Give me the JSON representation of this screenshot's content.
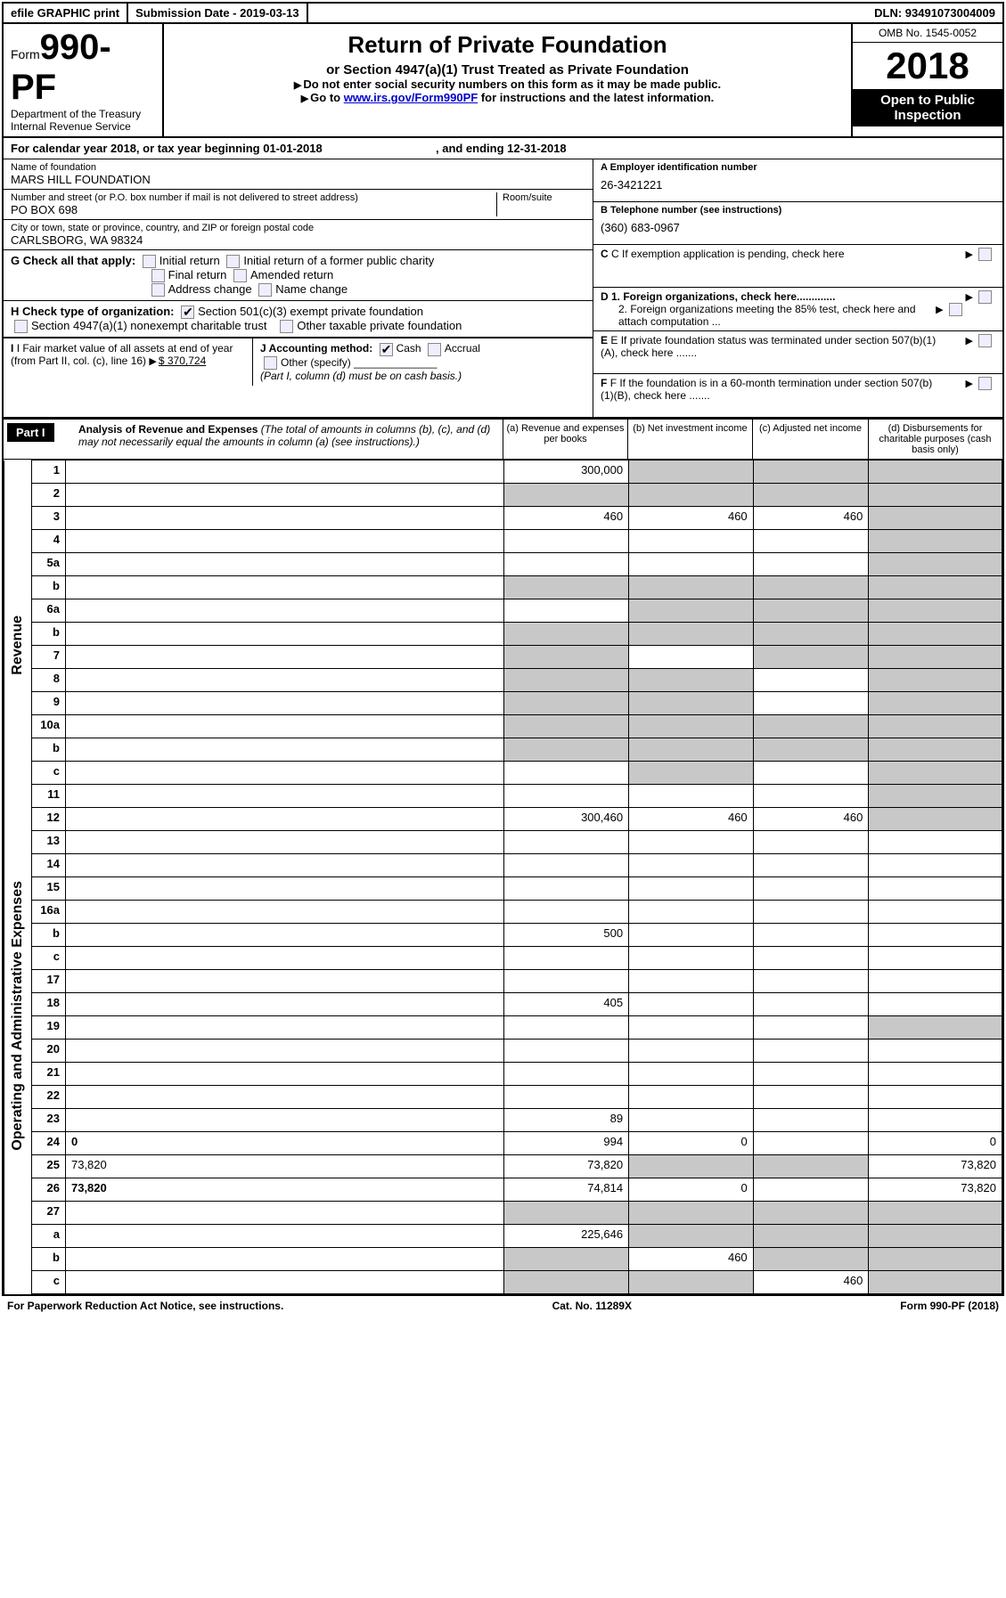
{
  "top": {
    "efile": "efile GRAPHIC print",
    "submission": "Submission Date - 2019-03-13",
    "dln": "DLN: 93491073004009"
  },
  "header": {
    "form_prefix": "Form",
    "form_num": "990-PF",
    "dept": "Department of the Treasury",
    "irs": "Internal Revenue Service",
    "title": "Return of Private Foundation",
    "subtitle": "or Section 4947(a)(1) Trust Treated as Private Foundation",
    "warn": "Do not enter social security numbers on this form as it may be made public.",
    "goto_pre": "Go to ",
    "goto_link": "www.irs.gov/Form990PF",
    "goto_post": " for instructions and the latest information.",
    "omb": "OMB No. 1545-0052",
    "year": "2018",
    "inspect": "Open to Public Inspection"
  },
  "cal": {
    "text_a": "For calendar year 2018, or tax year beginning 01-01-2018",
    "text_b": ", and ending 12-31-2018"
  },
  "entity": {
    "name_lbl": "Name of foundation",
    "name": "MARS HILL FOUNDATION",
    "addr_lbl": "Number and street (or P.O. box number if mail is not delivered to street address)",
    "room_lbl": "Room/suite",
    "addr": "PO BOX 698",
    "city_lbl": "City or town, state or province, country, and ZIP or foreign postal code",
    "city": "CARLSBORG, WA  98324",
    "ein_lbl": "A Employer identification number",
    "ein": "26-3421221",
    "tel_lbl": "B Telephone number (see instructions)",
    "tel": "(360) 683-0967",
    "c_lbl": "C If exemption application is pending, check here",
    "d1": "D 1. Foreign organizations, check here.............",
    "d2": "2. Foreign organizations meeting the 85% test, check here and attach computation ...",
    "e_lbl": "E  If private foundation status was terminated under section 507(b)(1)(A), check here .......",
    "f_lbl": "F  If the foundation is in a 60-month termination under section 507(b)(1)(B), check here ......."
  },
  "g": {
    "lbl": "G Check all that apply:",
    "opts": [
      "Initial return",
      "Initial return of a former public charity",
      "Final return",
      "Amended return",
      "Address change",
      "Name change"
    ]
  },
  "h": {
    "lbl": "H Check type of organization:",
    "o1": "Section 501(c)(3) exempt private foundation",
    "o2": "Section 4947(a)(1) nonexempt charitable trust",
    "o3": "Other taxable private foundation"
  },
  "i": {
    "lbl": "I Fair market value of all assets at end of year (from Part II, col. (c), line 16)",
    "val": "$  370,724"
  },
  "j": {
    "lbl": "J Accounting method:",
    "cash": "Cash",
    "accr": "Accrual",
    "other": "Other (specify)",
    "note": "(Part I, column (d) must be on cash basis.)"
  },
  "part1": {
    "hdr": "Part I",
    "title": "Analysis of Revenue and Expenses",
    "note": "(The total of amounts in columns (b), (c), and (d) may not necessarily equal the amounts in column (a) (see instructions).)",
    "col_a": "(a)   Revenue and expenses per books",
    "col_b": "(b)   Net investment income",
    "col_c": "(c)   Adjusted net income",
    "col_d": "(d)   Disbursements for charitable purposes (cash basis only)"
  },
  "side": {
    "rev": "Revenue",
    "exp": "Operating and Administrative Expenses"
  },
  "rows": [
    {
      "n": "1",
      "d": "",
      "a": "300,000",
      "b": "",
      "c": "",
      "sb": true,
      "sc": true,
      "sd": true
    },
    {
      "n": "2",
      "d": "",
      "a": "",
      "b": "",
      "c": "",
      "sa": true,
      "sb": true,
      "sc": true,
      "sd": true
    },
    {
      "n": "3",
      "d": "",
      "a": "460",
      "b": "460",
      "c": "460",
      "sd": true
    },
    {
      "n": "4",
      "d": "",
      "a": "",
      "b": "",
      "c": "",
      "sd": true
    },
    {
      "n": "5a",
      "d": "",
      "a": "",
      "b": "",
      "c": "",
      "sd": true
    },
    {
      "n": "b",
      "d": "",
      "a": "",
      "b": "",
      "c": "",
      "sa": true,
      "sb": true,
      "sc": true,
      "sd": true
    },
    {
      "n": "6a",
      "d": "",
      "a": "",
      "b": "",
      "c": "",
      "sb": true,
      "sc": true,
      "sd": true
    },
    {
      "n": "b",
      "d": "",
      "a": "",
      "b": "",
      "c": "",
      "sa": true,
      "sb": true,
      "sc": true,
      "sd": true
    },
    {
      "n": "7",
      "d": "",
      "a": "",
      "b": "",
      "c": "",
      "sa": true,
      "sc": true,
      "sd": true
    },
    {
      "n": "8",
      "d": "",
      "a": "",
      "b": "",
      "c": "",
      "sa": true,
      "sb": true,
      "sd": true
    },
    {
      "n": "9",
      "d": "",
      "a": "",
      "b": "",
      "c": "",
      "sa": true,
      "sb": true,
      "sd": true
    },
    {
      "n": "10a",
      "d": "",
      "a": "",
      "b": "",
      "c": "",
      "sa": true,
      "sb": true,
      "sc": true,
      "sd": true
    },
    {
      "n": "b",
      "d": "",
      "a": "",
      "b": "",
      "c": "",
      "sa": true,
      "sb": true,
      "sc": true,
      "sd": true
    },
    {
      "n": "c",
      "d": "",
      "a": "",
      "b": "",
      "c": "",
      "sb": true,
      "sd": true
    },
    {
      "n": "11",
      "d": "",
      "a": "",
      "b": "",
      "c": "",
      "sd": true
    },
    {
      "n": "12",
      "d": "",
      "a": "300,460",
      "b": "460",
      "c": "460",
      "bold": true,
      "sd": true
    }
  ],
  "rows2": [
    {
      "n": "13",
      "d": "",
      "a": "",
      "b": "",
      "c": ""
    },
    {
      "n": "14",
      "d": "",
      "a": "",
      "b": "",
      "c": ""
    },
    {
      "n": "15",
      "d": "",
      "a": "",
      "b": "",
      "c": ""
    },
    {
      "n": "16a",
      "d": "",
      "a": "",
      "b": "",
      "c": ""
    },
    {
      "n": "b",
      "d": "",
      "a": "500",
      "b": "",
      "c": ""
    },
    {
      "n": "c",
      "d": "",
      "a": "",
      "b": "",
      "c": ""
    },
    {
      "n": "17",
      "d": "",
      "a": "",
      "b": "",
      "c": ""
    },
    {
      "n": "18",
      "d": "",
      "a": "405",
      "b": "",
      "c": ""
    },
    {
      "n": "19",
      "d": "",
      "a": "",
      "b": "",
      "c": "",
      "sd": true
    },
    {
      "n": "20",
      "d": "",
      "a": "",
      "b": "",
      "c": ""
    },
    {
      "n": "21",
      "d": "",
      "a": "",
      "b": "",
      "c": ""
    },
    {
      "n": "22",
      "d": "",
      "a": "",
      "b": "",
      "c": ""
    },
    {
      "n": "23",
      "d": "",
      "a": "89",
      "b": "",
      "c": ""
    },
    {
      "n": "24",
      "d": "0",
      "a": "994",
      "b": "0",
      "c": "",
      "bold": true
    },
    {
      "n": "25",
      "d": "73,820",
      "a": "73,820",
      "b": "",
      "c": "",
      "sb": true,
      "sc": true
    },
    {
      "n": "26",
      "d": "73,820",
      "a": "74,814",
      "b": "0",
      "c": "",
      "bold": true
    }
  ],
  "rows3": [
    {
      "n": "27",
      "d": "",
      "a": "",
      "b": "",
      "c": "",
      "sa": true,
      "sb": true,
      "sc": true,
      "sd": true,
      "bold": true
    },
    {
      "n": "a",
      "d": "",
      "a": "225,646",
      "b": "",
      "c": "",
      "bold": true,
      "sb": true,
      "sc": true,
      "sd": true
    },
    {
      "n": "b",
      "d": "",
      "a": "",
      "b": "460",
      "c": "",
      "bold": true,
      "sa": true,
      "sc": true,
      "sd": true
    },
    {
      "n": "c",
      "d": "",
      "a": "",
      "b": "",
      "c": "460",
      "bold": true,
      "sa": true,
      "sb": true,
      "sd": true
    }
  ],
  "foot": {
    "l": "For Paperwork Reduction Act Notice, see instructions.",
    "m": "Cat. No. 11289X",
    "r": "Form 990-PF (2018)"
  }
}
